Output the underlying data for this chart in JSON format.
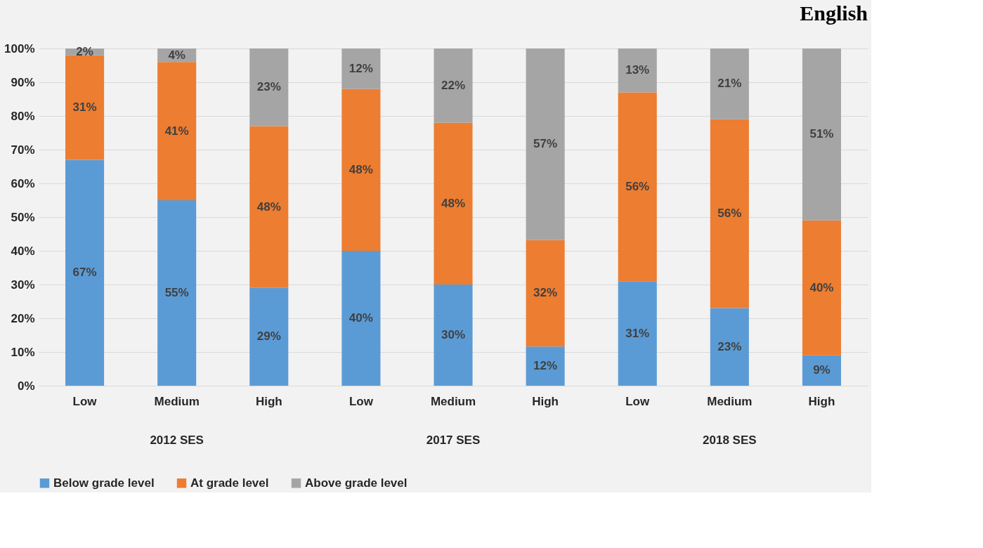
{
  "chart_data": {
    "type": "bar",
    "title": "English",
    "stacked": true,
    "categories": [
      "Low",
      "Medium",
      "High",
      "Low",
      "Medium",
      "High",
      "Low",
      "Medium",
      "High"
    ],
    "annotations": [
      "2012 SES",
      "2017 SES",
      "2018 SES"
    ],
    "series": [
      {
        "name": "Below grade level",
        "color": "#5b9bd5",
        "values": [
          67,
          55,
          29,
          40,
          30,
          11.6,
          31,
          23,
          9
        ],
        "value_labels": [
          "67%",
          "55%",
          "29%",
          "40%",
          "30%",
          "12%",
          "31%",
          "23%",
          "9%"
        ]
      },
      {
        "name": "At grade level",
        "color": "#ed7d31",
        "values": [
          31,
          41,
          48,
          48,
          48,
          31.6,
          56,
          56,
          40
        ],
        "value_labels": [
          "31%",
          "41%",
          "48%",
          "48%",
          "48%",
          "32%",
          "56%",
          "56%",
          "40%"
        ]
      },
      {
        "name": "Above grade level",
        "color": "#a5a5a5",
        "values": [
          2,
          4,
          23,
          12,
          22,
          56.8,
          13,
          21,
          51
        ],
        "value_labels": [
          "2%",
          "4%",
          "23%",
          "12%",
          "22%",
          "57%",
          "13%",
          "21%",
          "51%"
        ]
      }
    ],
    "ylim": [
      0,
      100
    ],
    "yticks": [
      {
        "value": 0,
        "label": "0%"
      },
      {
        "value": 10,
        "label": "10%"
      },
      {
        "value": 20,
        "label": "20%"
      },
      {
        "value": 30,
        "label": "30%"
      },
      {
        "value": 40,
        "label": "40%"
      },
      {
        "value": 50,
        "label": "50%"
      },
      {
        "value": 60,
        "label": "60%"
      },
      {
        "value": 70,
        "label": "70%"
      },
      {
        "value": 80,
        "label": "80%"
      },
      {
        "value": 90,
        "label": "90%"
      },
      {
        "value": 100,
        "label": "100%"
      }
    ],
    "grid": "y",
    "legend": "bottom"
  }
}
